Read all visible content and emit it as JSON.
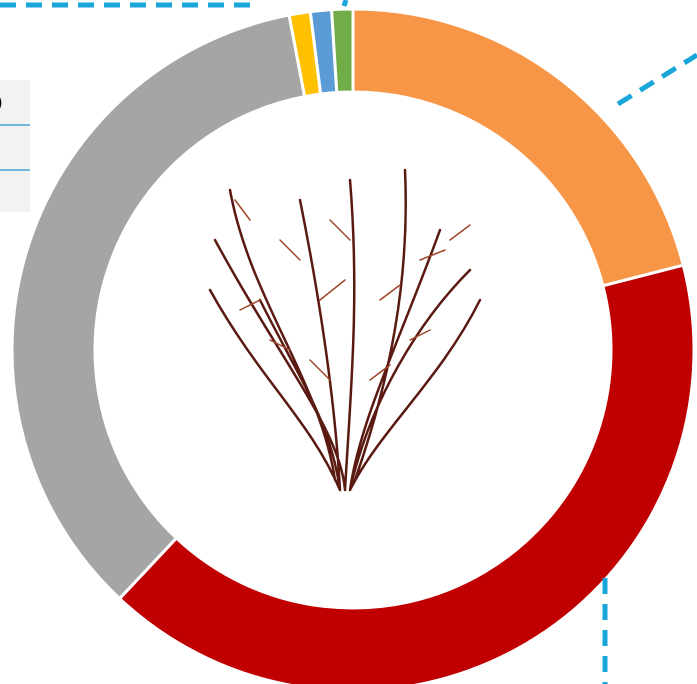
{
  "chart_data": {
    "type": "donut",
    "values": [
      21,
      41,
      35,
      1,
      1,
      1
    ],
    "colors": [
      "#F79646",
      "#C00000",
      "#A5A5A5",
      "#FFC000",
      "#5B9BD5",
      "#70AD47"
    ],
    "start_angle": 0,
    "direction": "clockwise"
  },
  "table_fragment": {
    "text": ")"
  }
}
